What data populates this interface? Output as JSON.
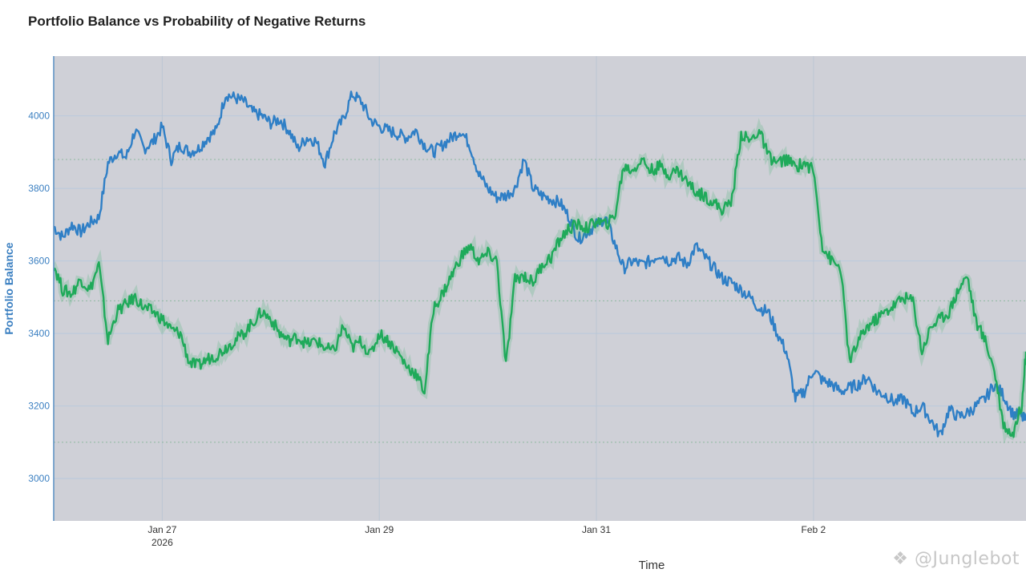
{
  "chart_data": {
    "type": "line",
    "title": "Portfolio Balance vs Probability of Negative Returns",
    "xlabel": "Time",
    "ylabel": "Portfolio Balance",
    "x_range": [
      "2026-01-26T00:00",
      "2026-02-03T23:00"
    ],
    "ylim": [
      2883,
      4165
    ],
    "y_ticks": [
      3000,
      3200,
      3400,
      3600,
      3800,
      4000
    ],
    "x_ticks": [
      {
        "date": "2026-01-27",
        "label": "Jan 27",
        "sublabel": "2026"
      },
      {
        "date": "2026-01-29",
        "label": "Jan 29",
        "sublabel": ""
      },
      {
        "date": "2026-01-31",
        "label": "Jan 31",
        "sublabel": ""
      },
      {
        "date": "2026-02-02",
        "label": "Feb 2",
        "sublabel": ""
      }
    ],
    "secondary_guides": [
      3880,
      3490,
      3100
    ],
    "grid": true,
    "legend": "none",
    "series": [
      {
        "color": "#2f7fc6",
        "points": [
          [
            "2026-01-26T00:00",
            3695
          ],
          [
            "2026-01-26T02:00",
            3665
          ],
          [
            "2026-01-26T04:00",
            3700
          ],
          [
            "2026-01-26T06:00",
            3680
          ],
          [
            "2026-01-26T08:00",
            3705
          ],
          [
            "2026-01-26T10:00",
            3720
          ],
          [
            "2026-01-26T12:00",
            3870
          ],
          [
            "2026-01-26T14:00",
            3900
          ],
          [
            "2026-01-26T16:00",
            3885
          ],
          [
            "2026-01-26T18:00",
            3960
          ],
          [
            "2026-01-26T20:00",
            3910
          ],
          [
            "2026-01-26T22:00",
            3930
          ],
          [
            "2026-01-27T00:00",
            3970
          ],
          [
            "2026-01-27T02:00",
            3880
          ],
          [
            "2026-01-27T04:00",
            3920
          ],
          [
            "2026-01-27T06:00",
            3900
          ],
          [
            "2026-01-27T08:00",
            3910
          ],
          [
            "2026-01-27T10:00",
            3940
          ],
          [
            "2026-01-27T12:00",
            3960
          ],
          [
            "2026-01-27T14:00",
            4060
          ],
          [
            "2026-01-27T16:00",
            4050
          ],
          [
            "2026-01-27T18:00",
            4040
          ],
          [
            "2026-01-27T20:00",
            4010
          ],
          [
            "2026-01-27T22:00",
            4000
          ],
          [
            "2026-01-28T00:00",
            3980
          ],
          [
            "2026-01-28T02:00",
            3990
          ],
          [
            "2026-01-28T04:00",
            3960
          ],
          [
            "2026-01-28T06:00",
            3910
          ],
          [
            "2026-01-28T08:00",
            3940
          ],
          [
            "2026-01-28T10:00",
            3930
          ],
          [
            "2026-01-28T12:00",
            3870
          ],
          [
            "2026-01-28T14:00",
            3950
          ],
          [
            "2026-01-28T16:00",
            3990
          ],
          [
            "2026-01-28T18:00",
            4060
          ],
          [
            "2026-01-28T20:00",
            4040
          ],
          [
            "2026-01-28T22:00",
            3990
          ],
          [
            "2026-01-29T00:00",
            3970
          ],
          [
            "2026-01-29T02:00",
            3960
          ],
          [
            "2026-01-29T04:00",
            3950
          ],
          [
            "2026-01-29T06:00",
            3940
          ],
          [
            "2026-01-29T08:00",
            3960
          ],
          [
            "2026-01-29T10:00",
            3920
          ],
          [
            "2026-01-29T12:00",
            3900
          ],
          [
            "2026-01-29T14:00",
            3920
          ],
          [
            "2026-01-29T16:00",
            3940
          ],
          [
            "2026-01-29T18:00",
            3960
          ],
          [
            "2026-01-29T20:00",
            3920
          ],
          [
            "2026-01-29T22:00",
            3840
          ],
          [
            "2026-01-30T00:00",
            3800
          ],
          [
            "2026-01-30T02:00",
            3775
          ],
          [
            "2026-01-30T04:00",
            3780
          ],
          [
            "2026-01-30T06:00",
            3800
          ],
          [
            "2026-01-30T08:00",
            3880
          ],
          [
            "2026-01-30T10:00",
            3800
          ],
          [
            "2026-01-30T12:00",
            3780
          ],
          [
            "2026-01-30T14:00",
            3770
          ],
          [
            "2026-01-30T16:00",
            3760
          ],
          [
            "2026-01-30T18:00",
            3720
          ],
          [
            "2026-01-30T20:00",
            3660
          ],
          [
            "2026-01-30T22:00",
            3680
          ],
          [
            "2026-01-31T00:00",
            3700
          ],
          [
            "2026-01-31T02:00",
            3720
          ],
          [
            "2026-01-31T04:00",
            3650
          ],
          [
            "2026-01-31T06:00",
            3580
          ],
          [
            "2026-01-31T08:00",
            3600
          ],
          [
            "2026-01-31T10:00",
            3590
          ],
          [
            "2026-01-31T12:00",
            3600
          ],
          [
            "2026-01-31T14:00",
            3620
          ],
          [
            "2026-01-31T16:00",
            3600
          ],
          [
            "2026-01-31T18:00",
            3610
          ],
          [
            "2026-01-31T20:00",
            3590
          ],
          [
            "2026-01-31T22:00",
            3640
          ],
          [
            "2026-02-01T00:00",
            3610
          ],
          [
            "2026-02-01T02:00",
            3580
          ],
          [
            "2026-02-01T04:00",
            3550
          ],
          [
            "2026-02-01T06:00",
            3540
          ],
          [
            "2026-02-01T08:00",
            3520
          ],
          [
            "2026-02-01T10:00",
            3500
          ],
          [
            "2026-02-01T12:00",
            3470
          ],
          [
            "2026-02-01T14:00",
            3460
          ],
          [
            "2026-02-01T16:00",
            3400
          ],
          [
            "2026-02-01T18:00",
            3350
          ],
          [
            "2026-02-01T20:00",
            3220
          ],
          [
            "2026-02-01T22:00",
            3240
          ],
          [
            "2026-02-02T00:00",
            3300
          ],
          [
            "2026-02-02T02:00",
            3270
          ],
          [
            "2026-02-02T04:00",
            3260
          ],
          [
            "2026-02-02T06:00",
            3240
          ],
          [
            "2026-02-02T08:00",
            3250
          ],
          [
            "2026-02-02T10:00",
            3260
          ],
          [
            "2026-02-02T12:00",
            3280
          ],
          [
            "2026-02-02T14:00",
            3240
          ],
          [
            "2026-02-02T16:00",
            3230
          ],
          [
            "2026-02-02T18:00",
            3210
          ],
          [
            "2026-02-02T20:00",
            3220
          ],
          [
            "2026-02-02T22:00",
            3180
          ],
          [
            "2026-02-03T00:00",
            3200
          ],
          [
            "2026-02-03T02:00",
            3160
          ],
          [
            "2026-02-03T04:00",
            3120
          ],
          [
            "2026-02-03T06:00",
            3190
          ],
          [
            "2026-02-03T08:00",
            3170
          ],
          [
            "2026-02-03T10:00",
            3180
          ],
          [
            "2026-02-03T12:00",
            3200
          ],
          [
            "2026-02-03T14:00",
            3220
          ],
          [
            "2026-02-03T16:00",
            3260
          ],
          [
            "2026-02-03T18:00",
            3230
          ],
          [
            "2026-02-03T20:00",
            3180
          ],
          [
            "2026-02-03T22:00",
            3170
          ],
          [
            "2026-02-03T23:00",
            3160
          ]
        ]
      },
      {
        "color": "#1faa5a",
        "points": [
          [
            "2026-01-26T00:00",
            3590
          ],
          [
            "2026-01-26T02:00",
            3520
          ],
          [
            "2026-01-26T04:00",
            3510
          ],
          [
            "2026-01-26T06:00",
            3550
          ],
          [
            "2026-01-26T08:00",
            3520
          ],
          [
            "2026-01-26T10:00",
            3590
          ],
          [
            "2026-01-26T12:00",
            3380
          ],
          [
            "2026-01-26T14:00",
            3460
          ],
          [
            "2026-01-26T16:00",
            3480
          ],
          [
            "2026-01-26T18:00",
            3500
          ],
          [
            "2026-01-26T20:00",
            3470
          ],
          [
            "2026-01-26T22:00",
            3460
          ],
          [
            "2026-01-27T00:00",
            3440
          ],
          [
            "2026-01-27T02:00",
            3410
          ],
          [
            "2026-01-27T04:00",
            3400
          ],
          [
            "2026-01-27T06:00",
            3320
          ],
          [
            "2026-01-27T08:00",
            3310
          ],
          [
            "2026-01-27T10:00",
            3330
          ],
          [
            "2026-01-27T12:00",
            3340
          ],
          [
            "2026-01-27T14:00",
            3360
          ],
          [
            "2026-01-27T16:00",
            3380
          ],
          [
            "2026-01-27T18:00",
            3400
          ],
          [
            "2026-01-27T20:00",
            3430
          ],
          [
            "2026-01-27T22:00",
            3460
          ],
          [
            "2026-01-28T00:00",
            3440
          ],
          [
            "2026-01-28T02:00",
            3400
          ],
          [
            "2026-01-28T04:00",
            3380
          ],
          [
            "2026-01-28T06:00",
            3390
          ],
          [
            "2026-01-28T08:00",
            3370
          ],
          [
            "2026-01-28T10:00",
            3380
          ],
          [
            "2026-01-28T12:00",
            3360
          ],
          [
            "2026-01-28T14:00",
            3350
          ],
          [
            "2026-01-28T16:00",
            3420
          ],
          [
            "2026-01-28T18:00",
            3360
          ],
          [
            "2026-01-28T20:00",
            3380
          ],
          [
            "2026-01-28T22:00",
            3340
          ],
          [
            "2026-01-29T00:00",
            3400
          ],
          [
            "2026-01-29T02:00",
            3380
          ],
          [
            "2026-01-29T04:00",
            3350
          ],
          [
            "2026-01-29T06:00",
            3310
          ],
          [
            "2026-01-29T08:00",
            3290
          ],
          [
            "2026-01-29T10:00",
            3240
          ],
          [
            "2026-01-29T12:00",
            3470
          ],
          [
            "2026-01-29T14:00",
            3510
          ],
          [
            "2026-01-29T16:00",
            3560
          ],
          [
            "2026-01-29T18:00",
            3610
          ],
          [
            "2026-01-29T20:00",
            3640
          ],
          [
            "2026-01-29T22:00",
            3600
          ],
          [
            "2026-01-30T00:00",
            3620
          ],
          [
            "2026-01-30T02:00",
            3600
          ],
          [
            "2026-01-30T04:00",
            3310
          ],
          [
            "2026-01-30T06:00",
            3550
          ],
          [
            "2026-01-30T08:00",
            3560
          ],
          [
            "2026-01-30T10:00",
            3540
          ],
          [
            "2026-01-30T12:00",
            3590
          ],
          [
            "2026-01-30T14:00",
            3610
          ],
          [
            "2026-01-30T16:00",
            3660
          ],
          [
            "2026-01-30T18:00",
            3690
          ],
          [
            "2026-01-30T20:00",
            3700
          ],
          [
            "2026-01-30T22:00",
            3690
          ],
          [
            "2026-01-31T00:00",
            3710
          ],
          [
            "2026-01-31T02:00",
            3700
          ],
          [
            "2026-01-31T04:00",
            3720
          ],
          [
            "2026-01-31T06:00",
            3860
          ],
          [
            "2026-01-31T08:00",
            3850
          ],
          [
            "2026-01-31T10:00",
            3880
          ],
          [
            "2026-01-31T12:00",
            3850
          ],
          [
            "2026-01-31T14:00",
            3860
          ],
          [
            "2026-01-31T16:00",
            3840
          ],
          [
            "2026-01-31T18:00",
            3850
          ],
          [
            "2026-01-31T20:00",
            3820
          ],
          [
            "2026-01-31T22:00",
            3790
          ],
          [
            "2026-02-01T00:00",
            3780
          ],
          [
            "2026-02-01T02:00",
            3760
          ],
          [
            "2026-02-01T04:00",
            3740
          ],
          [
            "2026-02-01T06:00",
            3770
          ],
          [
            "2026-02-01T08:00",
            3950
          ],
          [
            "2026-02-01T10:00",
            3930
          ],
          [
            "2026-02-01T12:00",
            3960
          ],
          [
            "2026-02-01T14:00",
            3890
          ],
          [
            "2026-02-01T16:00",
            3870
          ],
          [
            "2026-02-01T18:00",
            3880
          ],
          [
            "2026-02-01T20:00",
            3860
          ],
          [
            "2026-02-01T22:00",
            3870
          ],
          [
            "2026-02-02T00:00",
            3850
          ],
          [
            "2026-02-02T02:00",
            3640
          ],
          [
            "2026-02-02T04:00",
            3600
          ],
          [
            "2026-02-02T06:00",
            3580
          ],
          [
            "2026-02-02T08:00",
            3320
          ],
          [
            "2026-02-02T10:00",
            3380
          ],
          [
            "2026-02-02T12:00",
            3420
          ],
          [
            "2026-02-02T14:00",
            3440
          ],
          [
            "2026-02-02T16:00",
            3460
          ],
          [
            "2026-02-02T18:00",
            3480
          ],
          [
            "2026-02-02T20:00",
            3500
          ],
          [
            "2026-02-02T22:00",
            3490
          ],
          [
            "2026-02-03T00:00",
            3350
          ],
          [
            "2026-02-03T02:00",
            3420
          ],
          [
            "2026-02-03T04:00",
            3440
          ],
          [
            "2026-02-03T06:00",
            3460
          ],
          [
            "2026-02-03T08:00",
            3520
          ],
          [
            "2026-02-03T10:00",
            3560
          ],
          [
            "2026-02-03T12:00",
            3430
          ],
          [
            "2026-02-03T14:00",
            3380
          ],
          [
            "2026-02-03T16:00",
            3300
          ],
          [
            "2026-02-03T18:00",
            3150
          ],
          [
            "2026-02-03T20:00",
            3120
          ],
          [
            "2026-02-03T22:00",
            3200
          ],
          [
            "2026-02-03T23:00",
            3350
          ]
        ]
      }
    ]
  },
  "watermark": "Junglebot"
}
